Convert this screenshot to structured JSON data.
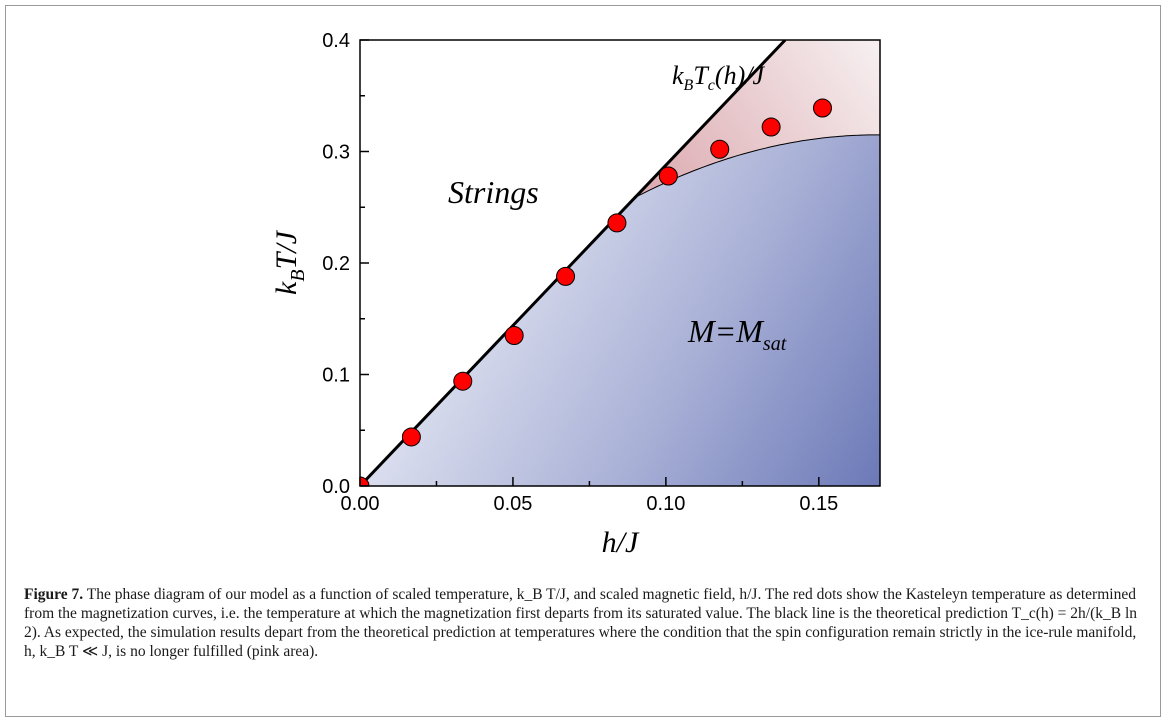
{
  "chart_data": {
    "type": "scatter",
    "xlabel": "h/J",
    "ylabel": "k_B T/J",
    "xlim": [
      0.0,
      0.17
    ],
    "ylim": [
      0.0,
      0.4
    ],
    "x_ticks": [
      "0.00",
      "0.05",
      "0.10",
      "0.15"
    ],
    "y_ticks": [
      "0.0",
      "0.1",
      "0.2",
      "0.3",
      "0.4"
    ],
    "series": [
      {
        "name": "",
        "kind": "scatter",
        "color": "#ff0000",
        "x": [
          0.0,
          0.0168,
          0.0336,
          0.0504,
          0.0672,
          0.084,
          0.1008,
          0.1176,
          0.1344,
          0.1512
        ],
        "y": [
          0.0,
          0.044,
          0.094,
          0.135,
          0.188,
          0.236,
          0.278,
          0.302,
          0.322,
          0.339
        ]
      },
      {
        "name": "",
        "kind": "line",
        "color": "#000000",
        "label": "k_B T_c(h)/J",
        "x": [
          0.0,
          0.139
        ],
        "y": [
          0.0,
          0.4
        ]
      }
    ],
    "regions": [
      {
        "label": "Strings",
        "color": "#ffffff"
      },
      {
        "label": "M=M_sat",
        "color": "#6b78b8"
      },
      {
        "label": "",
        "color": "#e9c4c8"
      }
    ]
  },
  "caption": {
    "figure_label": "Figure 7.",
    "text": "The phase diagram of our model as a function of scaled temperature, k_B T/J, and scaled magnetic field, h/J. The red dots show the Kasteleyn temperature as determined from the magnetization curves, i.e. the temperature at which the magnetization first departs from its saturated value. The black line is the theoretical prediction T_c(h) = 2h/(k_B ln 2). As expected, the simulation results depart from the theoretical prediction at temperatures where the condition that the spin configuration remain strictly in the ice-rule manifold, h, k_B T ≪ J, is no longer fulfilled (pink area)."
  }
}
